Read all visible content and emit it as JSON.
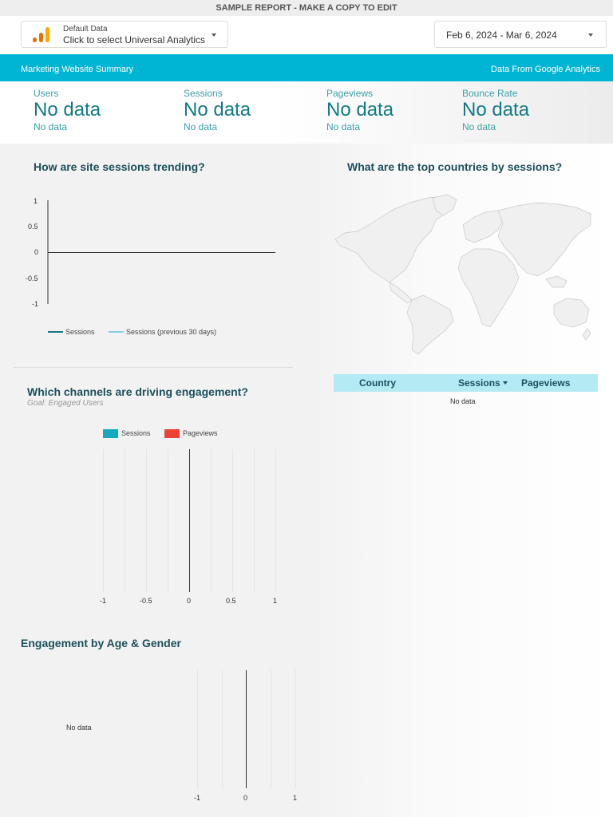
{
  "banner": "SAMPLE REPORT - MAKE A COPY TO EDIT",
  "data_source": {
    "label": "Default Data",
    "value": "Click to select Universal Analytics"
  },
  "date_range": "Feb 6, 2024 - Mar 6, 2024",
  "header": {
    "left": "Marketing Website Summary",
    "right": "Data From Google Analytics"
  },
  "kpis": [
    {
      "label": "Users",
      "value": "No data",
      "sub": "No data"
    },
    {
      "label": "Sessions",
      "value": "No data",
      "sub": "No data"
    },
    {
      "label": "Pageviews",
      "value": "No data",
      "sub": "No data"
    },
    {
      "label": "Bounce Rate",
      "value": "No data",
      "sub": "No data"
    }
  ],
  "sessions_trend": {
    "title": "How are site sessions trending?",
    "y_ticks": [
      "1",
      "0.5",
      "0",
      "-0.5",
      "-1"
    ],
    "legend": [
      "Sessions",
      "Sessions (previous 30 days)"
    ]
  },
  "channels": {
    "title": "Which channels are driving engagement?",
    "subtitle": "Goal: Engaged Users",
    "legend": [
      "Sessions",
      "Pageviews"
    ],
    "x_ticks": [
      "-1",
      "-0.5",
      "0",
      "0.5",
      "1"
    ]
  },
  "age_gender": {
    "title": "Engagement by Age & Gender",
    "no_data": "No data",
    "x_ticks": [
      "-1",
      "0",
      "1"
    ]
  },
  "countries": {
    "title": "What are the top countries by sessions?",
    "columns": [
      "Country",
      "Sessions",
      "Pageviews"
    ],
    "no_data": "No data"
  },
  "colors": {
    "accent": "#00b4d4",
    "sessions": "#15a9bd",
    "pageviews": "#ea4335",
    "prev": "#7fd3db",
    "table_head": "#b3eaf3"
  },
  "chart_data": [
    {
      "type": "line",
      "title": "How are site sessions trending?",
      "ylim": [
        -1,
        1
      ],
      "series": [
        {
          "name": "Sessions",
          "values": []
        },
        {
          "name": "Sessions (previous 30 days)",
          "values": []
        }
      ]
    },
    {
      "type": "bar",
      "title": "Which channels are driving engagement?",
      "xlim": [
        -1,
        1
      ],
      "series": [
        {
          "name": "Sessions",
          "values": []
        },
        {
          "name": "Pageviews",
          "values": []
        }
      ]
    },
    {
      "type": "bar",
      "title": "Engagement by Age & Gender",
      "xlim": [
        -1,
        1
      ],
      "series": []
    }
  ]
}
